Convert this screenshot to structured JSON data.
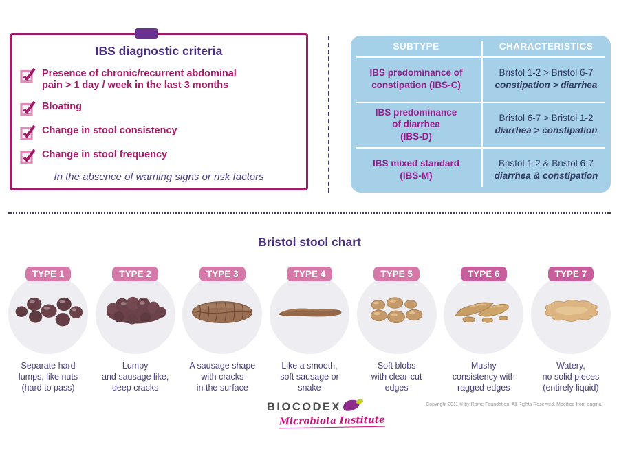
{
  "criteria_box": {
    "title": "IBS diagnostic criteria",
    "items": [
      {
        "lines": [
          "Presence of chronic/recurrent abdominal",
          "pain > 1 day / week in the last 3 months"
        ]
      },
      {
        "lines": [
          "Bloating"
        ]
      },
      {
        "lines": [
          "Change in stool consistency"
        ]
      },
      {
        "lines": [
          "Change in stool frequency"
        ]
      }
    ],
    "footnote": "In the absence of warning signs or risk factors"
  },
  "subtype_table": {
    "headers": [
      "SUBTYPE",
      "CHARACTERISTICS"
    ],
    "rows": [
      {
        "subtype_lines": [
          "IBS predominance of",
          "constipation (IBS-C)"
        ],
        "characteristic": "Bristol 1-2 > Bristol 6-7",
        "characteristic_detail": "constipation > diarrhea"
      },
      {
        "subtype_lines": [
          "IBS predominance",
          "of diarrhea",
          "(IBS-D)"
        ],
        "characteristic": "Bristol 6-7 > Bristol 1-2",
        "characteristic_detail": "diarrhea > constipation"
      },
      {
        "subtype_lines": [
          "IBS mixed standard",
          "(IBS-M)"
        ],
        "characteristic": "Bristol 1-2 & Bristol 6-7",
        "characteristic_detail": "diarrhea & constipation"
      }
    ]
  },
  "stool_chart": {
    "title": "Bristol stool chart",
    "types": [
      {
        "label": "TYPE 1",
        "badge_color": "#d579a9",
        "description_lines": [
          "Separate hard",
          "lumps, like nuts",
          "(hard to pass)"
        ]
      },
      {
        "label": "TYPE 2",
        "badge_color": "#d579a9",
        "description_lines": [
          "Lumpy",
          "and sausage like,",
          "deep cracks"
        ]
      },
      {
        "label": "TYPE 3",
        "badge_color": "#d579a9",
        "description_lines": [
          "A sausage shape",
          "with cracks",
          "in the surface"
        ]
      },
      {
        "label": "TYPE 4",
        "badge_color": "#d579a9",
        "description_lines": [
          "Like a smooth,",
          "soft sausage or",
          "snake"
        ]
      },
      {
        "label": "TYPE 5",
        "badge_color": "#d579a9",
        "description_lines": [
          "Soft blobs",
          "with clear-cut",
          "edges"
        ]
      },
      {
        "label": "TYPE 6",
        "badge_color": "#c75f9d",
        "description_lines": [
          "Mushy",
          "consistency with",
          "ragged edges"
        ]
      },
      {
        "label": "TYPE 7",
        "badge_color": "#c75f9d",
        "description_lines": [
          "Watery,",
          "no solid pieces",
          "(entirely liquid)"
        ]
      }
    ]
  },
  "footer": {
    "logo_name": "BIOCODEX",
    "logo_tagline": "Microbiota Institute",
    "copyright": "Copyright 2011 © by Rome Foundation. All Rights Reserved. Modified from original"
  },
  "colors": {
    "box_border_magenta": "#a21a68",
    "tab_purple": "#6b3191",
    "heading_purple": "#4b2e7e",
    "criteria_text_magenta": "#a81a68",
    "footnote_purple": "#4f3f80",
    "table_background_blue": "#a6cfe8",
    "table_header_white": "#ffffff",
    "subtype_text_magenta": "#9c1b8c",
    "characteristics_text_navy": "#333c66",
    "badge_pink": "#d579a9",
    "badge_pink_dark": "#c75f9d",
    "circle_gray": "#ededf2",
    "description_purple": "#4b3f7e",
    "divider_navy": "#3c3c6e",
    "logo_gray": "#4d4d4d",
    "logo_pink": "#c4177c"
  }
}
